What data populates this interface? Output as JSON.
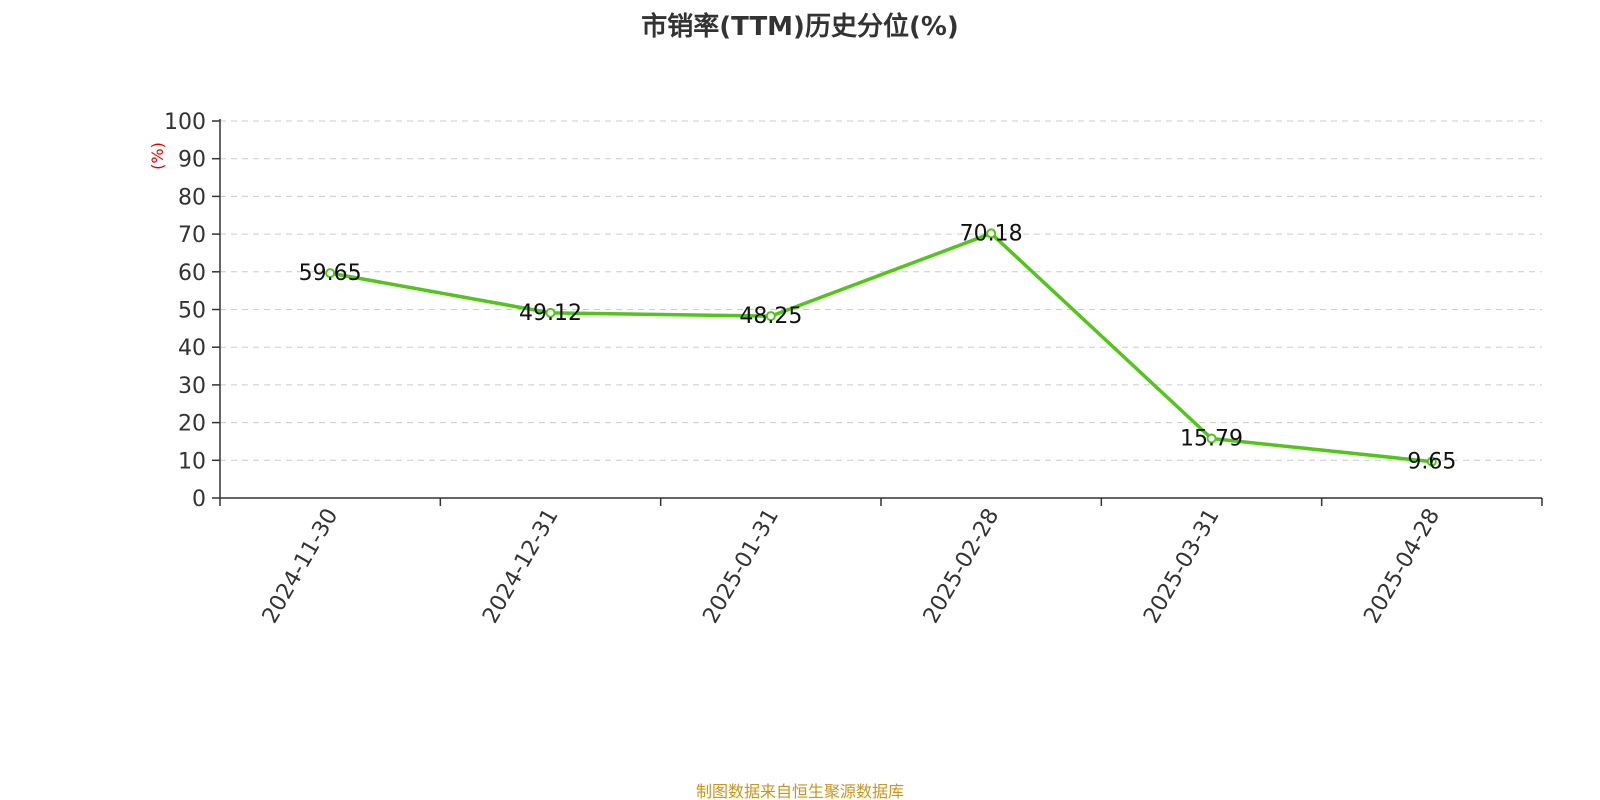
{
  "chart_data": {
    "type": "line",
    "title": "市销率(TTM)历史分位(%)",
    "ylabel": "(%)",
    "xlabel": "",
    "categories": [
      "2024-11-30",
      "2024-12-31",
      "2025-01-31",
      "2025-02-28",
      "2025-03-31",
      "2025-04-28"
    ],
    "series": [
      {
        "values": [
          59.65,
          49.12,
          48.25,
          70.18,
          15.79,
          9.65
        ],
        "labels": [
          "59.65",
          "49.12",
          "48.25",
          "70.18",
          "15.79",
          "9.65"
        ],
        "color": "#52c41a"
      }
    ],
    "ylim": [
      0,
      100
    ],
    "yticks": [
      0,
      10,
      20,
      30,
      40,
      50,
      60,
      70,
      80,
      90,
      100
    ],
    "ytick_labels": [
      "0",
      "10",
      "20",
      "30",
      "40",
      "50",
      "60",
      "70",
      "80",
      "90",
      "100"
    ],
    "grid": true,
    "grid_style": "dashed",
    "ylabel_color": "#e00000"
  },
  "source": "制图数据来自恒生聚源数据库"
}
